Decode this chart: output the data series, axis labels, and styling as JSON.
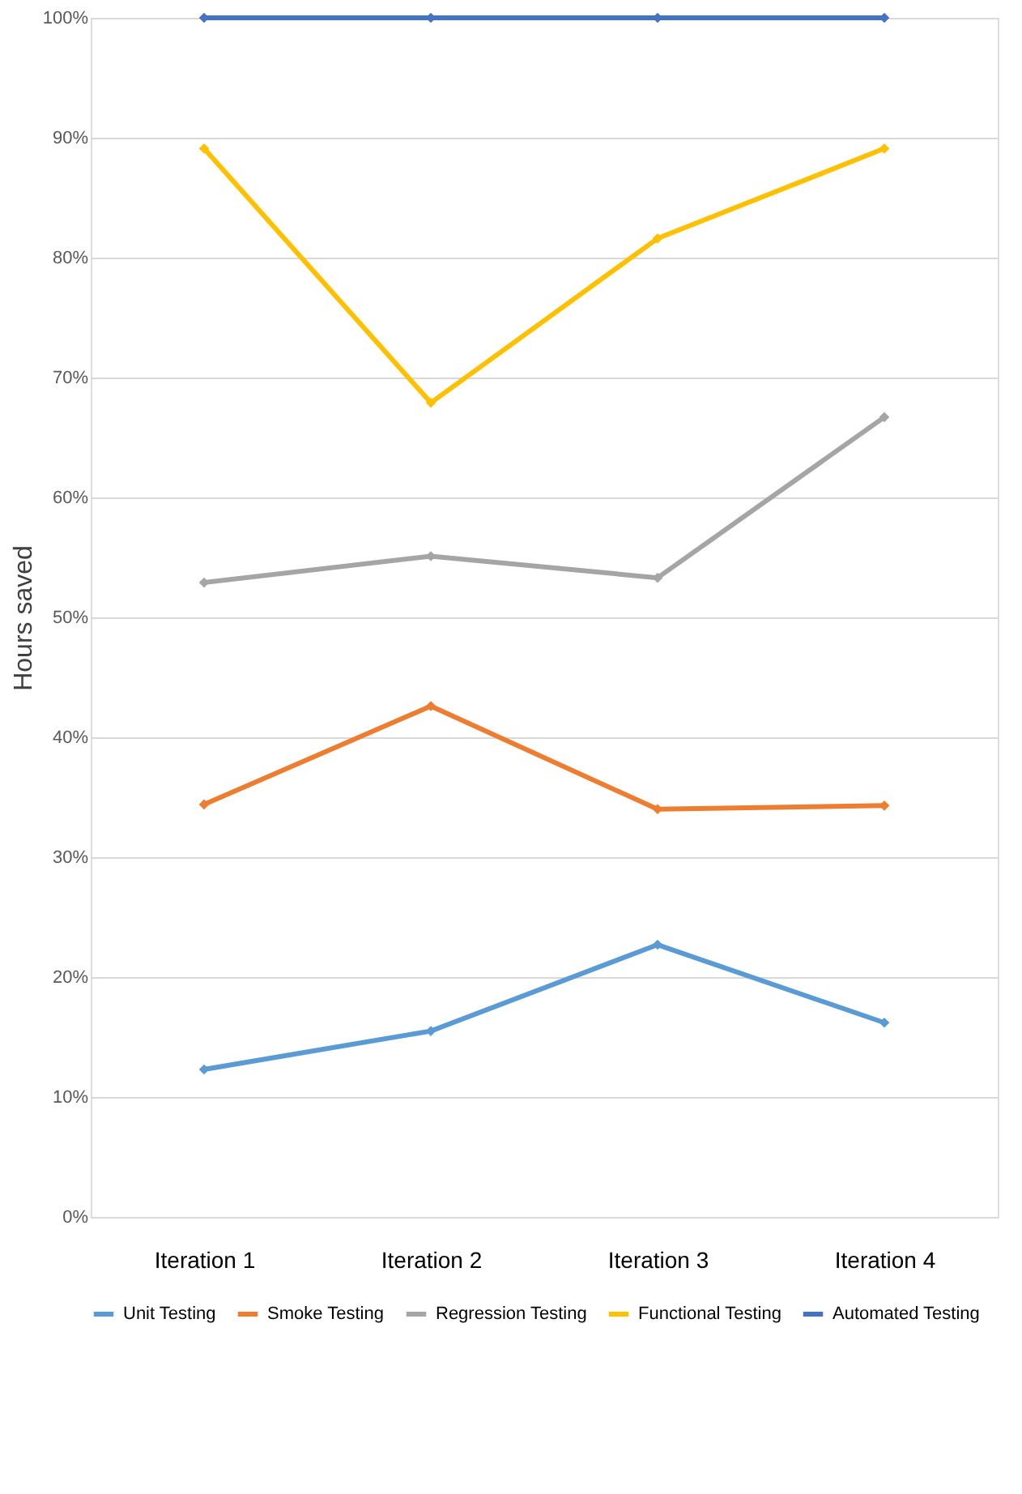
{
  "chart_data": {
    "type": "line",
    "ylabel": "Hours saved",
    "categories": [
      "Iteration 1",
      "Iteration 2",
      "Iteration 3",
      "Iteration 4"
    ],
    "series": [
      {
        "name": "Unit Testing",
        "color": "#5b9bd5",
        "values": [
          12.3,
          15.5,
          22.7,
          16.2
        ]
      },
      {
        "name": "Smoke Testing",
        "color": "#ed7d31",
        "values": [
          34.4,
          42.6,
          34.0,
          34.3
        ]
      },
      {
        "name": "Regression Testing",
        "color": "#a5a5a5",
        "values": [
          52.9,
          55.1,
          53.3,
          66.7
        ]
      },
      {
        "name": "Functional Testing",
        "color": "#ffc000",
        "values": [
          89.1,
          67.9,
          81.6,
          89.1
        ]
      },
      {
        "name": "Automated Testing",
        "color": "#4472c4",
        "values": [
          100,
          100,
          100,
          100
        ]
      }
    ],
    "ylim": [
      0,
      100
    ],
    "yticks": [
      {
        "value": 0,
        "label": "0%"
      },
      {
        "value": 10,
        "label": "10%"
      },
      {
        "value": 20,
        "label": "20%"
      },
      {
        "value": 30,
        "label": "30%"
      },
      {
        "value": 40,
        "label": "40%"
      },
      {
        "value": 50,
        "label": "50%"
      },
      {
        "value": 60,
        "label": "60%"
      },
      {
        "value": 70,
        "label": "70%"
      },
      {
        "value": 80,
        "label": "80%"
      },
      {
        "value": 90,
        "label": "90%"
      },
      {
        "value": 100,
        "label": "100%"
      }
    ],
    "grid": "y",
    "legend": "bottom",
    "marker": "diamond",
    "line_style": "solid"
  }
}
